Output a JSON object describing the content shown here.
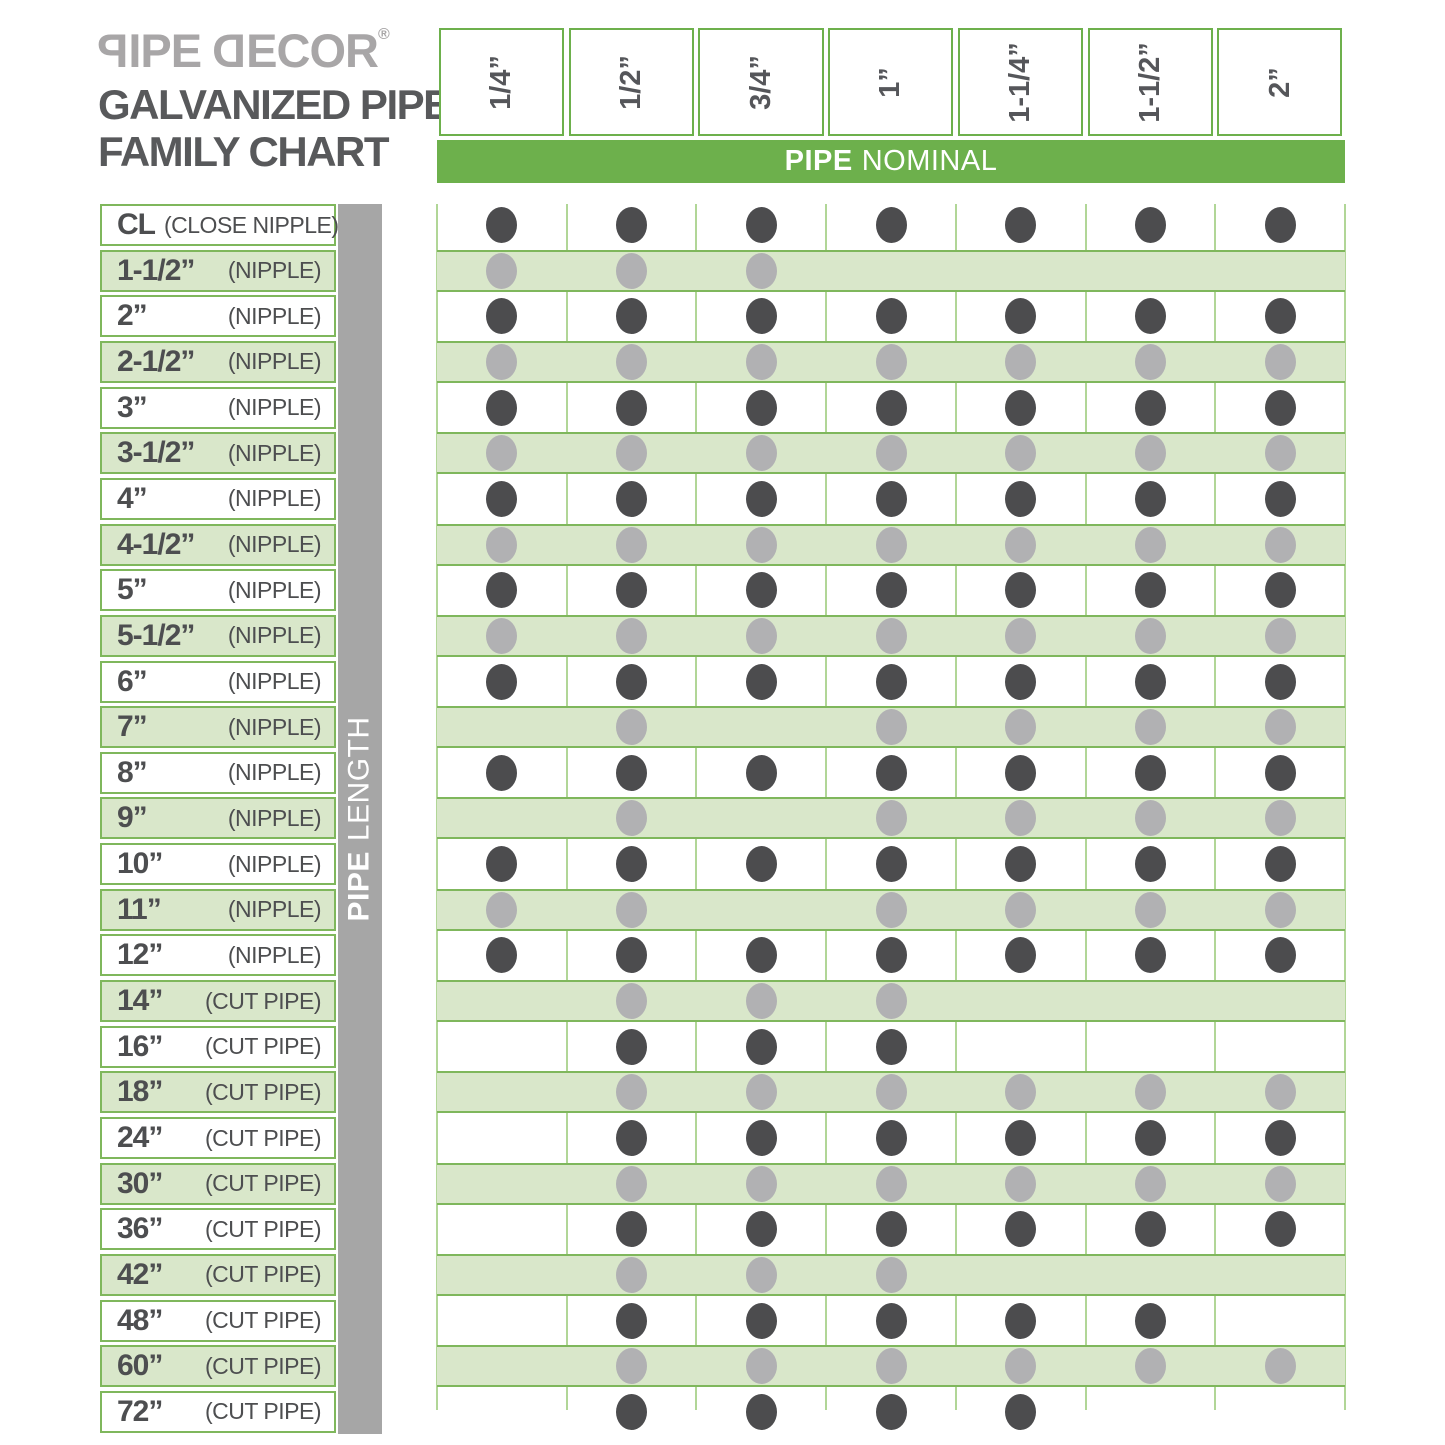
{
  "logo": {
    "brand": "PIPE DECOR",
    "registered": "®",
    "title_line1": "GALVANIZED PIPE",
    "title_line2": "FAMILY CHART"
  },
  "chart_data": {
    "type": "table",
    "title": "PIPE DECOR GALVANIZED PIPE FAMILY CHART",
    "column_axis": {
      "bold": "PIPE",
      "regular": "NOMINAL"
    },
    "row_axis": {
      "bold": "PIPE",
      "regular": "LENGTH"
    },
    "columns": [
      "1/4”",
      "1/2”",
      "3/4”",
      "1”",
      "1-1/4”",
      "1-1/2”",
      "2”"
    ],
    "rows": [
      {
        "size": "CL",
        "kind": "(CLOSE NIPPLE)",
        "available": [
          1,
          1,
          1,
          1,
          1,
          1,
          1
        ]
      },
      {
        "size": "1-1/2”",
        "kind": "(NIPPLE)",
        "available": [
          1,
          1,
          1,
          0,
          0,
          0,
          0
        ]
      },
      {
        "size": "2”",
        "kind": "(NIPPLE)",
        "available": [
          1,
          1,
          1,
          1,
          1,
          1,
          1
        ]
      },
      {
        "size": "2-1/2”",
        "kind": "(NIPPLE)",
        "available": [
          1,
          1,
          1,
          1,
          1,
          1,
          1
        ]
      },
      {
        "size": "3”",
        "kind": "(NIPPLE)",
        "available": [
          1,
          1,
          1,
          1,
          1,
          1,
          1
        ]
      },
      {
        "size": "3-1/2”",
        "kind": "(NIPPLE)",
        "available": [
          1,
          1,
          1,
          1,
          1,
          1,
          1
        ]
      },
      {
        "size": "4”",
        "kind": "(NIPPLE)",
        "available": [
          1,
          1,
          1,
          1,
          1,
          1,
          1
        ]
      },
      {
        "size": "4-1/2”",
        "kind": "(NIPPLE)",
        "available": [
          1,
          1,
          1,
          1,
          1,
          1,
          1
        ]
      },
      {
        "size": "5”",
        "kind": "(NIPPLE)",
        "available": [
          1,
          1,
          1,
          1,
          1,
          1,
          1
        ]
      },
      {
        "size": "5-1/2”",
        "kind": "(NIPPLE)",
        "available": [
          1,
          1,
          1,
          1,
          1,
          1,
          1
        ]
      },
      {
        "size": "6”",
        "kind": "(NIPPLE)",
        "available": [
          1,
          1,
          1,
          1,
          1,
          1,
          1
        ]
      },
      {
        "size": "7”",
        "kind": "(NIPPLE)",
        "available": [
          0,
          1,
          0,
          1,
          1,
          1,
          1
        ]
      },
      {
        "size": "8”",
        "kind": "(NIPPLE)",
        "available": [
          1,
          1,
          1,
          1,
          1,
          1,
          1
        ]
      },
      {
        "size": "9”",
        "kind": "(NIPPLE)",
        "available": [
          0,
          1,
          0,
          1,
          1,
          1,
          1
        ]
      },
      {
        "size": "10”",
        "kind": "(NIPPLE)",
        "available": [
          1,
          1,
          1,
          1,
          1,
          1,
          1
        ]
      },
      {
        "size": "11”",
        "kind": "(NIPPLE)",
        "available": [
          1,
          1,
          0,
          1,
          1,
          1,
          1
        ]
      },
      {
        "size": "12”",
        "kind": "(NIPPLE)",
        "available": [
          1,
          1,
          1,
          1,
          1,
          1,
          1
        ]
      },
      {
        "size": "14”",
        "kind": "(CUT PIPE)",
        "available": [
          0,
          1,
          1,
          1,
          0,
          0,
          0
        ]
      },
      {
        "size": "16”",
        "kind": "(CUT PIPE)",
        "available": [
          0,
          1,
          1,
          1,
          0,
          0,
          0
        ]
      },
      {
        "size": "18”",
        "kind": "(CUT PIPE)",
        "available": [
          0,
          1,
          1,
          1,
          1,
          1,
          1
        ]
      },
      {
        "size": "24”",
        "kind": "(CUT PIPE)",
        "available": [
          0,
          1,
          1,
          1,
          1,
          1,
          1
        ]
      },
      {
        "size": "30”",
        "kind": "(CUT PIPE)",
        "available": [
          0,
          1,
          1,
          1,
          1,
          1,
          1
        ]
      },
      {
        "size": "36”",
        "kind": "(CUT PIPE)",
        "available": [
          0,
          1,
          1,
          1,
          1,
          1,
          1
        ]
      },
      {
        "size": "42”",
        "kind": "(CUT PIPE)",
        "available": [
          0,
          1,
          1,
          1,
          0,
          0,
          0
        ]
      },
      {
        "size": "48”",
        "kind": "(CUT PIPE)",
        "available": [
          0,
          1,
          1,
          1,
          1,
          1,
          0
        ]
      },
      {
        "size": "60”",
        "kind": "(CUT PIPE)",
        "available": [
          0,
          1,
          1,
          1,
          1,
          1,
          1
        ]
      },
      {
        "size": "72”",
        "kind": "(CUT PIPE)",
        "available": [
          0,
          1,
          1,
          1,
          1,
          0,
          0
        ]
      }
    ],
    "legend_note": "dark dot = available (white row), light dot = available (green row)"
  },
  "colors": {
    "brand_green": "#6db04c",
    "stripe_green": "#d9e7ca",
    "grid_line_green": "#a9d18c",
    "stripe_border_green": "#7fb75c",
    "dark_dot": "#4c4c4e",
    "light_dot": "#b1b1b3",
    "side_bar_gray": "#a6a6a6",
    "logo_gray": "#a8a6a7",
    "title_gray": "#58595b"
  }
}
